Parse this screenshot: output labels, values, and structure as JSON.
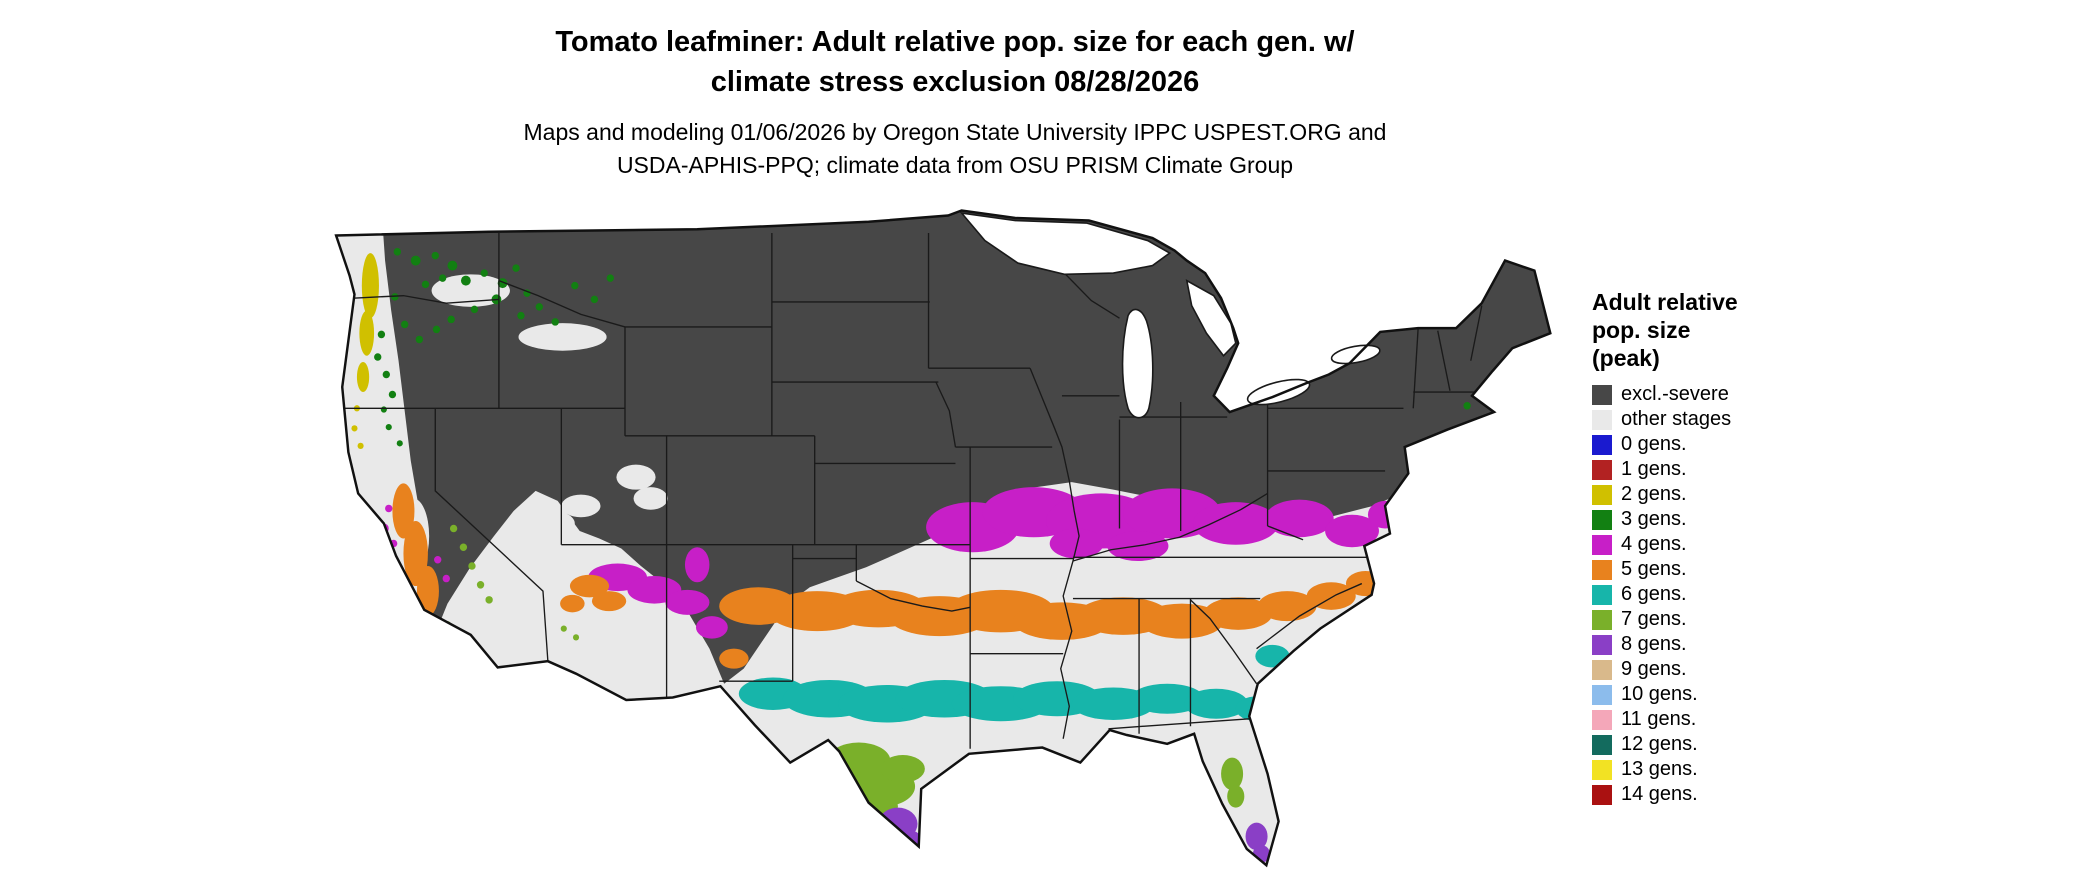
{
  "title": {
    "line1": "Tomato leafminer: Adult relative pop. size for each gen. w/",
    "line2": "climate stress exclusion 08/28/2026"
  },
  "subtitle": {
    "line1": "Maps and modeling 01/06/2026 by Oregon State University IPPC USPEST.ORG and",
    "line2": "USDA-APHIS-PPQ; climate data from OSU PRISM Climate Group"
  },
  "legend": {
    "title_lines": [
      "Adult relative",
      "pop. size",
      "(peak)"
    ],
    "items": [
      {
        "label": "excl.-severe",
        "color": "#474747"
      },
      {
        "label": "other stages",
        "color": "#e9e9e9"
      },
      {
        "label": "0 gens.",
        "color": "#1a1acf"
      },
      {
        "label": "1 gens.",
        "color": "#b22222"
      },
      {
        "label": "2 gens.",
        "color": "#d0c000"
      },
      {
        "label": "3 gens.",
        "color": "#128012"
      },
      {
        "label": "4 gens.",
        "color": "#c71fc7"
      },
      {
        "label": "5 gens.",
        "color": "#e8821e"
      },
      {
        "label": "6 gens.",
        "color": "#17b5aa"
      },
      {
        "label": "7 gens.",
        "color": "#7ab02a"
      },
      {
        "label": "8 gens.",
        "color": "#8a3fc6"
      },
      {
        "label": "9 gens.",
        "color": "#d9b98b"
      },
      {
        "label": "10 gens.",
        "color": "#8cbcec"
      },
      {
        "label": "11 gens.",
        "color": "#f4a7b9"
      },
      {
        "label": "12 gens.",
        "color": "#136b5e"
      },
      {
        "label": "13 gens.",
        "color": "#f2e223"
      },
      {
        "label": "14 gens.",
        "color": "#aa1111"
      }
    ]
  },
  "map": {
    "type": "choropleth",
    "region": "Contiguous United States",
    "land_base_color": "#e9e9e9",
    "exclusion_color": "#474747",
    "water_color": "#ffffff",
    "border_color": "#111111",
    "band_order_north_to_south": [
      "4 gens.",
      "5 gens.",
      "6 gens.",
      "7 gens.",
      "8 gens."
    ]
  }
}
